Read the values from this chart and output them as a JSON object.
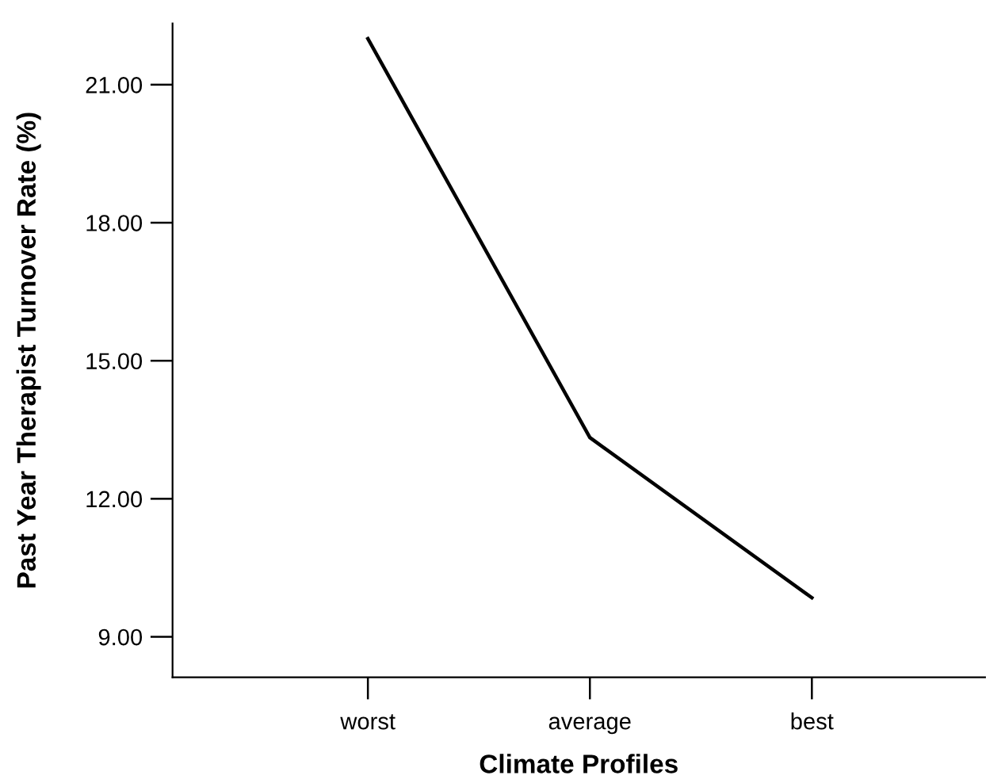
{
  "chart_data": {
    "type": "line",
    "xlabel": "Climate Profiles",
    "ylabel": "Past Year Therapist Turnover Rate (%)",
    "categories": [
      "worst",
      "average",
      "best"
    ],
    "series": [
      {
        "color": "#000000",
        "values": [
          22.0,
          13.33,
          9.85
        ]
      }
    ],
    "ylim": [
      8.12,
      22.33
    ],
    "yticks": [
      {
        "value": 9,
        "label": "9.00"
      },
      {
        "value": 12,
        "label": "12.00"
      },
      {
        "value": 15,
        "label": "15.00"
      },
      {
        "value": 18,
        "label": "18.00"
      },
      {
        "value": 21,
        "label": "21.00"
      }
    ],
    "grid": false,
    "marker": "none",
    "line_style": "solid"
  }
}
